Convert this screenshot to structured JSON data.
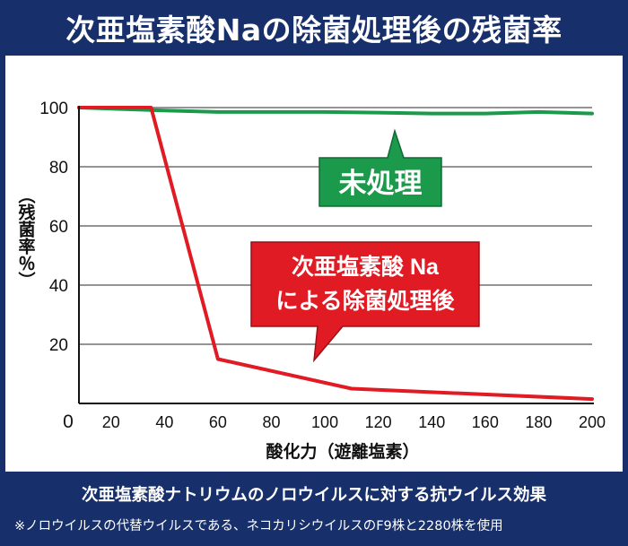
{
  "header": {
    "title": "次亜塩素酸Naの除菌処理後の残菌率"
  },
  "footer": {
    "caption": "次亜塩素酸ナトリウムのノロウイルスに対する抗ウイルス効果",
    "note": "※ノロウイルスの代替ウイルスである、ネコカリシウイルスのF9株と2280株を使用"
  },
  "colors": {
    "frame": "#17306b",
    "untreated": "#1a9a4a",
    "treated": "#e01b24"
  },
  "chart_data": {
    "type": "line",
    "xlabel": "酸化力（遊離塩素）",
    "ylabel": "（残菌率％）",
    "xlim": [
      8,
      200
    ],
    "ylim": [
      0,
      100
    ],
    "x_ticks": [
      "0",
      "20",
      "40",
      "60",
      "80",
      "100",
      "120",
      "140",
      "160",
      "180",
      "200"
    ],
    "y_ticks": [
      "20",
      "40",
      "60",
      "80",
      "100"
    ],
    "grid": true,
    "series": [
      {
        "name": "未処理",
        "color": "#1a9a4a",
        "x": [
          8,
          40,
          60,
          80,
          100,
          120,
          140,
          160,
          180,
          200
        ],
        "y": [
          100,
          99,
          98.5,
          98.5,
          98.5,
          98.3,
          98,
          98,
          98.5,
          98
        ]
      },
      {
        "name": "次亜塩素酸 Na による除菌処理後",
        "color": "#e01b24",
        "x": [
          8,
          35,
          60,
          110,
          200
        ],
        "y": [
          100,
          100,
          15,
          5,
          1.5
        ]
      }
    ],
    "annotations": [
      {
        "text": "未処理",
        "series": 0
      },
      {
        "text_lines": [
          "次亜塩素酸 Na",
          "による除菌処理後"
        ],
        "series": 1
      }
    ]
  }
}
